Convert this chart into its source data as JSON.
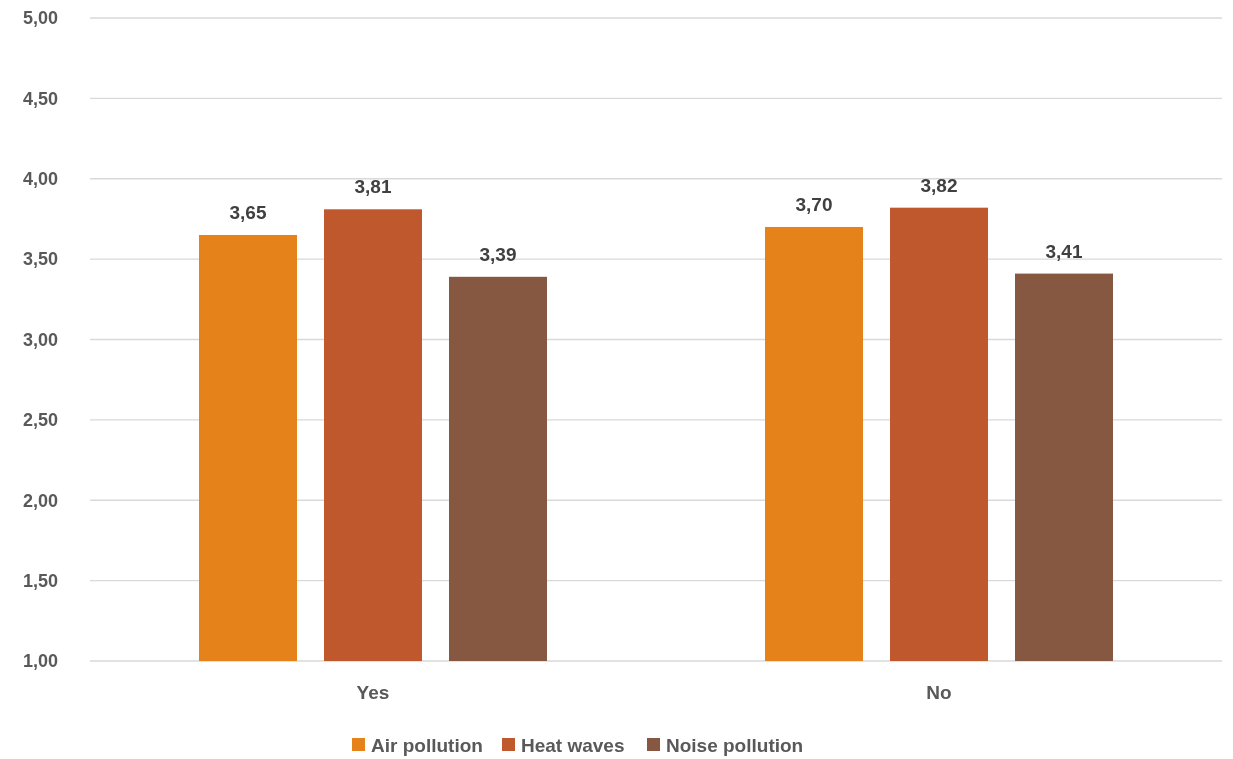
{
  "chart_data": {
    "type": "bar",
    "categories": [
      "Yes",
      "No"
    ],
    "series": [
      {
        "name": "Air pollution",
        "color": "#e5821a",
        "values": [
          3.65,
          3.7
        ],
        "value_labels": [
          "3,65",
          "3,70"
        ]
      },
      {
        "name": "Heat waves",
        "color": "#c0582d",
        "values": [
          3.81,
          3.82
        ],
        "value_labels": [
          "3,81",
          "3,82"
        ]
      },
      {
        "name": "Noise pollution",
        "color": "#875841",
        "values": [
          3.39,
          3.41
        ],
        "value_labels": [
          "3,39",
          "3,41"
        ]
      }
    ],
    "ylim": [
      1,
      5
    ],
    "yticks": [
      {
        "value": 1,
        "label": "1,00"
      },
      {
        "value": 1.5,
        "label": "1,50"
      },
      {
        "value": 2,
        "label": "2,00"
      },
      {
        "value": 2.5,
        "label": "2,50"
      },
      {
        "value": 3,
        "label": "3,00"
      },
      {
        "value": 3.5,
        "label": "3,50"
      },
      {
        "value": 4,
        "label": "4,00"
      },
      {
        "value": 4.5,
        "label": "4,50"
      },
      {
        "value": 5,
        "label": "5,00"
      }
    ],
    "grid": "y",
    "legend": "bottom"
  }
}
